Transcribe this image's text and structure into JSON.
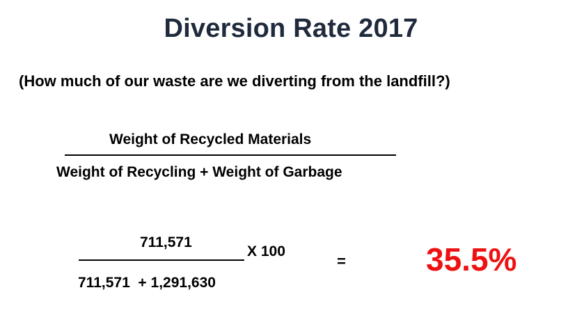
{
  "slide": {
    "title": "Diversion Rate 2017",
    "subtitle": "(How much of our waste are we diverting from the landfill?)",
    "formula": {
      "numerator": "Weight of Recycled Materials",
      "denominator": "Weight of Recycling + Weight of Garbage"
    },
    "calculation": {
      "numerator": "711,571",
      "denominator": "711,571  + 1,291,630",
      "multiplier": "X 100",
      "equals": "=",
      "result": "35.5%"
    }
  },
  "colors": {
    "title": "#1f2a3d",
    "result": "#ee1111"
  }
}
